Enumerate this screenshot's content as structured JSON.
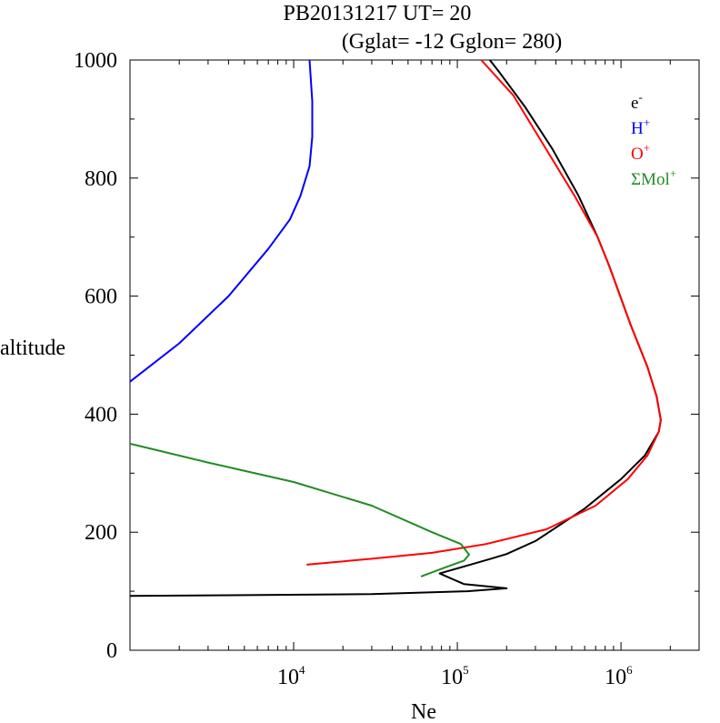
{
  "chart_data": {
    "type": "line",
    "title_line1": "PB20131217   UT=  20",
    "title_line2": "(Gglat= -12   Gglon=  280)",
    "xlabel": "Ne",
    "ylabel": "altitude",
    "x_scale": "log",
    "xlim": [
      1000,
      3000000
    ],
    "ylim": [
      0,
      1000
    ],
    "y_ticks": [
      0,
      200,
      400,
      600,
      800,
      1000
    ],
    "y_tick_labels": [
      "0",
      "200",
      "400",
      "600",
      "800",
      "1000"
    ],
    "x_ticks": [
      10000,
      100000,
      1000000
    ],
    "x_tick_labels": [
      {
        "base": "10",
        "exp": "4"
      },
      {
        "base": "10",
        "exp": "5"
      },
      {
        "base": "10",
        "exp": "6"
      }
    ],
    "grid": false,
    "legend_position": "top-right",
    "series": [
      {
        "name": "e-",
        "label_base": "e",
        "label_sup": "-",
        "color": "#000000",
        "points": [
          [
            1000,
            92
          ],
          [
            30000,
            95
          ],
          [
            115000,
            100
          ],
          [
            200000,
            105
          ],
          [
            110000,
            112
          ],
          [
            78000,
            130
          ],
          [
            120000,
            145
          ],
          [
            160000,
            155
          ],
          [
            200000,
            163
          ],
          [
            300000,
            185
          ],
          [
            600000,
            240
          ],
          [
            1000000,
            290
          ],
          [
            1400000,
            330
          ],
          [
            1700000,
            370
          ],
          [
            1750000,
            390
          ],
          [
            1650000,
            430
          ],
          [
            1450000,
            480
          ],
          [
            1150000,
            550
          ],
          [
            850000,
            650
          ],
          [
            720000,
            700
          ],
          [
            550000,
            770
          ],
          [
            380000,
            850
          ],
          [
            260000,
            920
          ],
          [
            180000,
            980
          ],
          [
            158000,
            1000
          ]
        ]
      },
      {
        "name": "H+",
        "label_base": "H",
        "label_sup": "+",
        "color": "#0000ff",
        "points": [
          [
            1000,
            455
          ],
          [
            2000,
            520
          ],
          [
            4000,
            600
          ],
          [
            7000,
            680
          ],
          [
            9500,
            730
          ],
          [
            11000,
            770
          ],
          [
            12500,
            820
          ],
          [
            13000,
            870
          ],
          [
            13000,
            930
          ],
          [
            12500,
            1000
          ]
        ]
      },
      {
        "name": "O+",
        "label_base": "O",
        "label_sup": "+",
        "color": "#ff0000",
        "points": [
          [
            12000,
            145
          ],
          [
            30000,
            155
          ],
          [
            70000,
            165
          ],
          [
            150000,
            180
          ],
          [
            350000,
            205
          ],
          [
            700000,
            245
          ],
          [
            1100000,
            290
          ],
          [
            1450000,
            330
          ],
          [
            1700000,
            370
          ],
          [
            1750000,
            390
          ],
          [
            1650000,
            430
          ],
          [
            1450000,
            480
          ],
          [
            1150000,
            550
          ],
          [
            850000,
            650
          ],
          [
            720000,
            700
          ],
          [
            520000,
            770
          ],
          [
            330000,
            860
          ],
          [
            220000,
            940
          ],
          [
            140000,
            1000
          ]
        ]
      },
      {
        "name": "ΣMol+",
        "label_base": "ΣMol",
        "label_sup": "+",
        "color": "#228b22",
        "points": [
          [
            1000,
            350
          ],
          [
            3000,
            318
          ],
          [
            10000,
            285
          ],
          [
            30000,
            245
          ],
          [
            70000,
            200
          ],
          [
            105000,
            180
          ],
          [
            118000,
            162
          ],
          [
            110000,
            152
          ],
          [
            80000,
            138
          ],
          [
            60000,
            125
          ]
        ]
      }
    ]
  }
}
